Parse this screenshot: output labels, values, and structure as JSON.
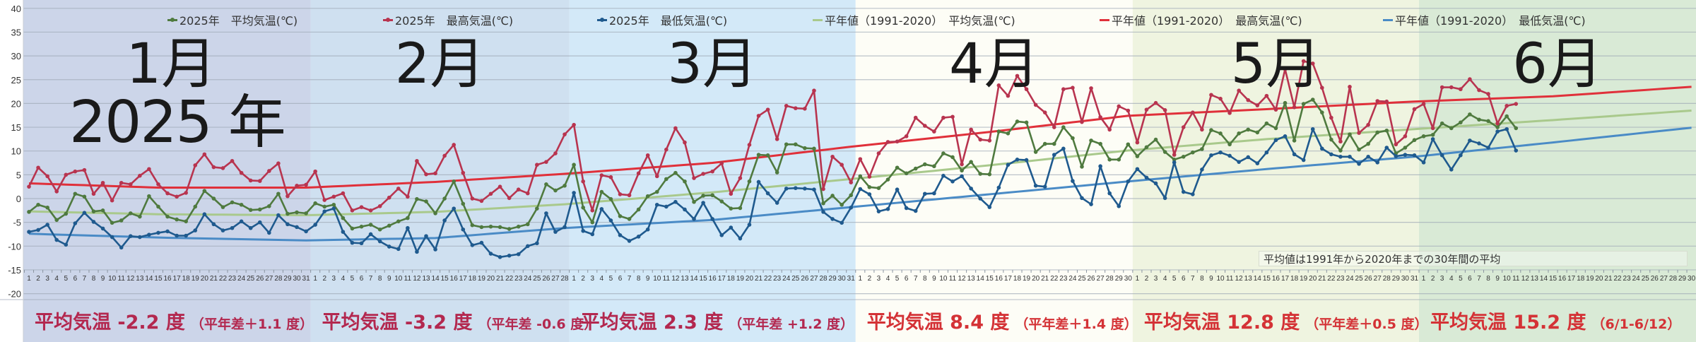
{
  "chart_data": {
    "type": "line",
    "title": "",
    "year_label": "2025 年",
    "ylim": [
      -20,
      40
    ],
    "y_ticks": [
      40,
      35,
      30,
      25,
      20,
      15,
      10,
      5,
      0,
      -5,
      -10,
      -15,
      -20
    ],
    "grid": true,
    "legend_position": "top",
    "months": [
      {
        "label": "1月",
        "days": 31,
        "bg": "#ccd5e9",
        "summary": "平均気温 -2.2 度",
        "diff": "（平年差＋1.1 度）",
        "color": "#b3284f"
      },
      {
        "label": "2月",
        "days": 28,
        "bg": "#cfe0f0",
        "summary": "平均気温 -3.2 度",
        "diff": "（平年差 -0.6 度）",
        "color": "#b3284f"
      },
      {
        "label": "3月",
        "days": 31,
        "bg": "#d3e9f8",
        "summary": "平均気温 2.3 度",
        "diff": "（平年差 +1.2 度）",
        "color": "#b3284f"
      },
      {
        "label": "4月",
        "days": 30,
        "bg": "#fdfdf6",
        "summary": "平均気温 8.4 度",
        "diff": "（平年差＋1.4 度）",
        "color": "#d43236"
      },
      {
        "label": "5月",
        "days": 31,
        "bg": "#eff4e0",
        "summary": "平均気温 12.8 度",
        "diff": "（平年差＋0.5 度）",
        "color": "#d43236"
      },
      {
        "label": "6月",
        "days": 30,
        "bg": "#d9ead6",
        "summary": "平均気温 15.2 度",
        "diff": "（6/1-6/12）",
        "color": "#d43236"
      }
    ],
    "series": [
      {
        "name": "2025年　平均気温(℃)",
        "color": "#4f7a3f",
        "markers": true,
        "values": [
          -2.8,
          -1.3,
          -1.9,
          -4.5,
          -3.2,
          1.0,
          0.4,
          -2.7,
          -2.5,
          -5.1,
          -4.6,
          -3.1,
          -3.8,
          0.5,
          -1.7,
          -3.8,
          -4.4,
          -4.8,
          -1.7,
          1.6,
          0,
          -1.8,
          -0.8,
          -1.3,
          -2.4,
          -2.3,
          -1.6,
          1.0,
          -3.2,
          -2.9,
          -3.1,
          -1,
          -1.7,
          -1.3,
          -4.1,
          -6.3,
          -5.9,
          -5.5,
          -6.5,
          -5.7,
          -4.8,
          -4.1,
          -0.1,
          -0.6,
          -3.1,
          0,
          3.6,
          -1.1,
          -5.6,
          -6,
          -5.9,
          -6,
          -6.4,
          -5.9,
          -5.4,
          -2.1,
          3,
          1.7,
          2.7,
          7.1,
          -1.9,
          -5,
          1.4,
          -0.1,
          -3.7,
          -4.3,
          -2.3,
          0.5,
          1.4,
          4.1,
          5.4,
          3.6,
          -0.7,
          0.6,
          0.7,
          -0.6,
          -2.1,
          -2,
          3.6,
          9.2,
          9.1,
          5.5,
          11.4,
          11.4,
          10.6,
          10.5,
          -1,
          0.6,
          -1.3,
          0.7,
          4.7,
          2.4,
          2.2,
          4,
          6.5,
          5.3,
          6.3,
          7.2,
          6.8,
          9.5,
          8.7,
          5.9,
          7.7,
          5.2,
          5.1,
          14.1,
          13.7,
          16.2,
          16,
          9.8,
          11.5,
          11.5,
          15,
          12.7,
          6.7,
          12.2,
          11.5,
          8.2,
          8.2,
          11.4,
          8.9,
          10.8,
          12.4,
          9.8,
          8.2,
          8.8,
          9.7,
          10.4,
          14.4,
          13.7,
          11.4,
          13.7,
          14.5,
          13.9,
          15.8,
          14.8,
          20.1,
          12.2,
          19.9,
          20.8,
          18.1,
          12.4,
          10.1,
          13.5,
          10.3,
          11.5,
          13.9,
          14.3,
          9.5,
          10.7,
          12.3,
          13.1,
          13.4,
          15.8,
          14.8,
          16,
          17.7,
          16.6,
          16.3,
          15,
          17.3,
          14.8
        ]
      },
      {
        "name": "2025年　最高気温(℃)",
        "color": "#b8344f",
        "markers": true,
        "values": [
          2.5,
          6.5,
          4.7,
          1.5,
          5,
          5.7,
          6,
          1,
          3.3,
          -0.4,
          3.3,
          3,
          4.8,
          6.2,
          3,
          1.1,
          0.4,
          1.2,
          7,
          9.3,
          6.6,
          6.4,
          7.9,
          5.4,
          3.8,
          3.7,
          5.8,
          7.4,
          0.5,
          2.7,
          2.9,
          5.7,
          -0.3,
          0.4,
          1.1,
          -2.5,
          -1.8,
          -2.5,
          -1.6,
          0.2,
          2.1,
          0.4,
          7.9,
          5.1,
          5.3,
          9,
          11.3,
          5.4,
          0,
          -0.5,
          1,
          2.5,
          0.1,
          1.9,
          1.1,
          7.1,
          7.7,
          9.5,
          13.5,
          15.5,
          3.6,
          -2.5,
          4.9,
          4.5,
          0.9,
          0.7,
          5.3,
          9.1,
          4.7,
          10.3,
          14.8,
          11.8,
          4.3,
          5.2,
          5.7,
          7.4,
          1,
          4.3,
          11.3,
          17.4,
          18.7,
          12.5,
          19.5,
          19,
          18.9,
          22.7,
          2,
          8.8,
          7.1,
          3.4,
          8.3,
          4.6,
          9.5,
          11.9,
          12,
          13.1,
          17,
          15.3,
          14.1,
          17,
          17.2,
          7.2,
          14.5,
          12.4,
          12.2,
          23.8,
          21.6,
          25.8,
          23,
          19.7,
          18.1,
          15,
          23,
          23.3,
          16.1,
          23.2,
          17.1,
          14.5,
          19.4,
          18.5,
          11.8,
          18.7,
          20.1,
          18.6,
          9.2,
          15,
          18.1,
          14.5,
          21.8,
          21,
          18,
          22.7,
          20.7,
          19.6,
          21.6,
          18.7,
          27.2,
          19.2,
          28.9,
          28.4,
          23.3,
          17,
          12,
          23.5,
          13.8,
          15.5,
          20.5,
          20.4,
          11.4,
          13.1,
          18.8,
          19.9,
          14.8,
          23.4,
          23.4,
          23,
          25.1,
          22.8,
          22,
          15.8,
          19.5,
          19.9
        ]
      },
      {
        "name": "2025年　最低気温(℃)",
        "color": "#1f5a8e",
        "markers": true,
        "values": [
          -7,
          -6.6,
          -5.5,
          -8.7,
          -9.7,
          -5.2,
          -3,
          -4.9,
          -6.3,
          -8.1,
          -10.3,
          -7.9,
          -8.1,
          -7.6,
          -7.2,
          -6.9,
          -7.8,
          -7.8,
          -6.7,
          -3.3,
          -5.4,
          -6.7,
          -6.2,
          -4.8,
          -6.2,
          -5,
          -7.2,
          -3.5,
          -5.4,
          -6,
          -6.9,
          -5.5,
          -2.7,
          -2.1,
          -7,
          -9.3,
          -9.4,
          -7.5,
          -9,
          -10.1,
          -10.6,
          -6.2,
          -11.2,
          -7.9,
          -10.7,
          -4.6,
          -2.1,
          -6.5,
          -9.8,
          -9.3,
          -11.6,
          -12.3,
          -12,
          -11.7,
          -10,
          -9.4,
          -3.1,
          -7,
          -6,
          1.2,
          -6.8,
          -7.5,
          -2.2,
          -4.6,
          -7.7,
          -8.9,
          -8,
          -6.5,
          -1.3,
          -1.7,
          -0.7,
          -2.3,
          -4.3,
          -0.9,
          -4.3,
          -7.7,
          -6.1,
          -8.4,
          -5.5,
          3.5,
          1.1,
          -0.9,
          2.1,
          2.2,
          2.1,
          1.9,
          -2.8,
          -4.3,
          -5.1,
          -1.9,
          2,
          0.9,
          -2.7,
          -2.2,
          1.9,
          -2,
          -2.6,
          1,
          1.1,
          4.8,
          3.6,
          4.7,
          2.1,
          0,
          -1.8,
          2.3,
          7.1,
          8.2,
          8.1,
          2.7,
          2.5,
          9.2,
          10.5,
          3.7,
          0.1,
          -1.2,
          6.8,
          1.1,
          -1.6,
          3.6,
          6.2,
          4.4,
          3.2,
          0.1,
          7.6,
          1.4,
          0.9,
          6.1,
          9.1,
          9.7,
          9,
          7.7,
          8.7,
          7.4,
          9.7,
          12.3,
          13.1,
          9.3,
          8.1,
          14.6,
          10.5,
          9.3,
          8.8,
          8.8,
          7.3,
          8.8,
          7.6,
          10.7,
          8.9,
          9.2,
          9.1,
          7.6,
          12.5,
          9.1,
          6.1,
          9.1,
          12.2,
          11.6,
          10.7,
          14.1,
          14.6,
          10.1
        ]
      },
      {
        "name": "平年値（1991-2020）　平均気温(℃)",
        "color": "#a9c98c",
        "markers": false,
        "anchors_day_value": [
          [
            1,
            -2.7
          ],
          [
            15,
            -3.3
          ],
          [
            31,
            -3.5
          ],
          [
            45,
            -2.8
          ],
          [
            59,
            -1.2
          ],
          [
            75,
            1.3
          ],
          [
            90,
            4.1
          ],
          [
            105,
            7
          ],
          [
            120,
            10.1
          ],
          [
            135,
            12.5
          ],
          [
            151,
            14.6
          ],
          [
            166,
            16.5
          ],
          [
            181,
            18.5
          ]
        ]
      },
      {
        "name": "平年値（1991-2020）　最高気温(℃)",
        "color": "#e0303a",
        "markers": false,
        "anchors_day_value": [
          [
            1,
            3.2
          ],
          [
            15,
            2.3
          ],
          [
            31,
            2.3
          ],
          [
            45,
            3.5
          ],
          [
            59,
            5.2
          ],
          [
            75,
            7.5
          ],
          [
            90,
            10.9
          ],
          [
            105,
            14
          ],
          [
            120,
            17.4
          ],
          [
            135,
            18.8
          ],
          [
            151,
            20.4
          ],
          [
            166,
            21.5
          ],
          [
            181,
            23.5
          ]
        ]
      },
      {
        "name": "平年値（1991-2020）　最低気温(℃)",
        "color": "#4a8bc6",
        "markers": false,
        "anchors_day_value": [
          [
            1,
            -7.4
          ],
          [
            15,
            -8.2
          ],
          [
            31,
            -8.8
          ],
          [
            45,
            -8.3
          ],
          [
            59,
            -6.2
          ],
          [
            75,
            -4.5
          ],
          [
            90,
            -1.8
          ],
          [
            105,
            0.9
          ],
          [
            120,
            3.6
          ],
          [
            135,
            6.2
          ],
          [
            151,
            8.8
          ],
          [
            166,
            11.8
          ],
          [
            181,
            14.9
          ]
        ]
      }
    ],
    "note": "平均値は1991年から2020年までの30年間の平均"
  }
}
